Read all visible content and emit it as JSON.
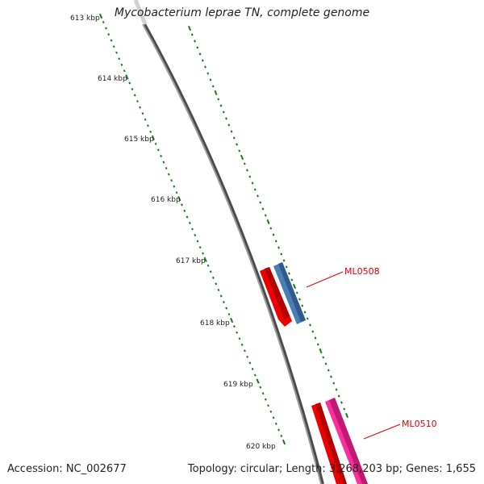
{
  "title": "Mycobacterium leprae TN, complete genome",
  "footer": {
    "accession_label": "Accession: NC_002677",
    "topology_label": "Topology: circular; Length: 3,268,203 bp; Genes: 1,655"
  },
  "ruler": {
    "ticks": [
      {
        "label": "613 kbp"
      },
      {
        "label": "614 kbp"
      },
      {
        "label": "615 kbp"
      },
      {
        "label": "616 kbp"
      },
      {
        "label": "617 kbp"
      },
      {
        "label": "618 kbp"
      },
      {
        "label": "619 kbp"
      },
      {
        "label": "620 kbp"
      }
    ]
  },
  "genes": [
    {
      "label": "ML0508",
      "label_color": "#e00000"
    },
    {
      "label": "ML0510",
      "label_color": "#e00000"
    }
  ],
  "colors": {
    "backbone": "#7a7a7a",
    "tick": "#1a7a1a",
    "cds_red": "#ee0000",
    "cds_blue": "#4a7fb5",
    "cds_pink": "#ff2f9a"
  }
}
